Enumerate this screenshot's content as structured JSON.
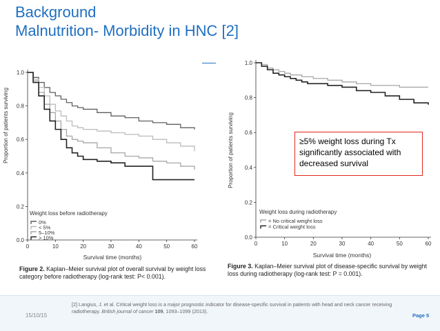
{
  "slide": {
    "title_line1": "Background",
    "title_line2": "Malnutrition- Morbidity in HNC [2]",
    "callout": "≥5% weight loss during Tx significantly associated with decreased survival",
    "footer_date": "15/10/15",
    "footer_ref_plain": "[2] Langius, J. et al. Critical weight loss is a major prognostic indicator for disease-specific survival in patients with head and neck cancer receiving radiotherapy. ",
    "footer_ref_journal": "British journal of cancer",
    "footer_ref_volume": "109",
    "footer_ref_tail": ", 1093–1099 (2013).",
    "footer_page": "Page 5",
    "accent_color": "#1f6fc1",
    "callout_border_color": "#e0261c"
  },
  "chart_data": [
    {
      "type": "line",
      "xlabel": "Survival time (months)",
      "ylabel": "Proportion of patients surviving",
      "xlim": [
        0,
        60
      ],
      "ylim": [
        0,
        1.0
      ],
      "x_ticks": [
        "0",
        "10",
        "20",
        "30",
        "40",
        "50",
        "60"
      ],
      "y_ticks": [
        "0.0",
        "0.2",
        "0.4",
        "0.6",
        "0.8",
        "1.0"
      ],
      "legend_title": "Weight loss before radiotherapy",
      "legend_placement": "bottom-left",
      "series": [
        {
          "name": "0%",
          "color": "#5f5f5f",
          "x": [
            0,
            2,
            4,
            6,
            8,
            10,
            12,
            14,
            16,
            18,
            20,
            25,
            30,
            35,
            40,
            45,
            50,
            55,
            60
          ],
          "y": [
            1.0,
            0.97,
            0.94,
            0.91,
            0.88,
            0.86,
            0.84,
            0.82,
            0.8,
            0.79,
            0.78,
            0.76,
            0.74,
            0.73,
            0.71,
            0.7,
            0.69,
            0.67,
            0.66
          ]
        },
        {
          "name": "< 5%",
          "color": "#bbbbbb",
          "x": [
            0,
            2,
            4,
            6,
            8,
            10,
            12,
            14,
            16,
            18,
            20,
            25,
            30,
            35,
            40,
            45,
            50,
            55,
            60
          ],
          "y": [
            1.0,
            0.96,
            0.91,
            0.86,
            0.81,
            0.77,
            0.74,
            0.71,
            0.68,
            0.67,
            0.66,
            0.65,
            0.64,
            0.63,
            0.62,
            0.6,
            0.58,
            0.56,
            0.53
          ]
        },
        {
          "name": "5–10%",
          "color": "#a6a6a6",
          "x": [
            0,
            2,
            4,
            6,
            8,
            10,
            12,
            14,
            16,
            18,
            20,
            25,
            30,
            35,
            40,
            45,
            50,
            55,
            60
          ],
          "y": [
            1.0,
            0.95,
            0.88,
            0.81,
            0.76,
            0.71,
            0.66,
            0.62,
            0.6,
            0.59,
            0.58,
            0.55,
            0.52,
            0.5,
            0.49,
            0.47,
            0.46,
            0.44,
            0.42
          ]
        },
        {
          "name": "> 10%",
          "color": "#222222",
          "x": [
            0,
            2,
            4,
            6,
            8,
            10,
            12,
            14,
            16,
            18,
            20,
            25,
            30,
            35,
            40,
            45,
            50,
            55,
            60
          ],
          "y": [
            1.0,
            0.94,
            0.86,
            0.78,
            0.71,
            0.66,
            0.6,
            0.55,
            0.52,
            0.5,
            0.48,
            0.47,
            0.46,
            0.44,
            0.44,
            0.36,
            0.36,
            0.36,
            0.36
          ]
        }
      ],
      "caption_label": "Figure 2.",
      "caption_text": " Kaplan–Meier survival plot of overall survival by weight loss category before radiotherapy (log-rank test: P< 0.001)."
    },
    {
      "type": "line",
      "xlabel": "Survival time (months)",
      "ylabel": "Proportion of patients surviving",
      "xlim": [
        0,
        60
      ],
      "ylim": [
        0,
        1.0
      ],
      "x_ticks": [
        "0",
        "10",
        "20",
        "30",
        "40",
        "50",
        "60"
      ],
      "y_ticks": [
        "0.0",
        "0.2",
        "0.4",
        "0.6",
        "0.8",
        "1.0"
      ],
      "legend_title": "Weight loss during radiotherapy",
      "legend_placement": "bottom-left",
      "series": [
        {
          "name": "= No critical weight loss",
          "color": "#a6a6a6",
          "x": [
            0,
            2,
            4,
            6,
            8,
            10,
            12,
            14,
            16,
            18,
            20,
            25,
            30,
            35,
            40,
            45,
            50,
            55,
            60
          ],
          "y": [
            1.0,
            0.99,
            0.97,
            0.96,
            0.95,
            0.94,
            0.93,
            0.93,
            0.92,
            0.92,
            0.91,
            0.9,
            0.89,
            0.88,
            0.87,
            0.87,
            0.86,
            0.86,
            0.86
          ]
        },
        {
          "name": "= Critical weight loss",
          "color": "#222222",
          "x": [
            0,
            2,
            4,
            6,
            8,
            10,
            12,
            14,
            16,
            18,
            20,
            25,
            30,
            35,
            40,
            45,
            50,
            55,
            60
          ],
          "y": [
            1.0,
            0.98,
            0.96,
            0.94,
            0.93,
            0.92,
            0.91,
            0.9,
            0.89,
            0.88,
            0.88,
            0.87,
            0.86,
            0.84,
            0.83,
            0.81,
            0.79,
            0.77,
            0.76
          ]
        }
      ],
      "caption_label": "Figure 3.",
      "caption_text": " Kaplan–Meier survival plot of disease-specific survival by weight loss during radiotherapy (log-rank test: P = 0.001)."
    }
  ]
}
